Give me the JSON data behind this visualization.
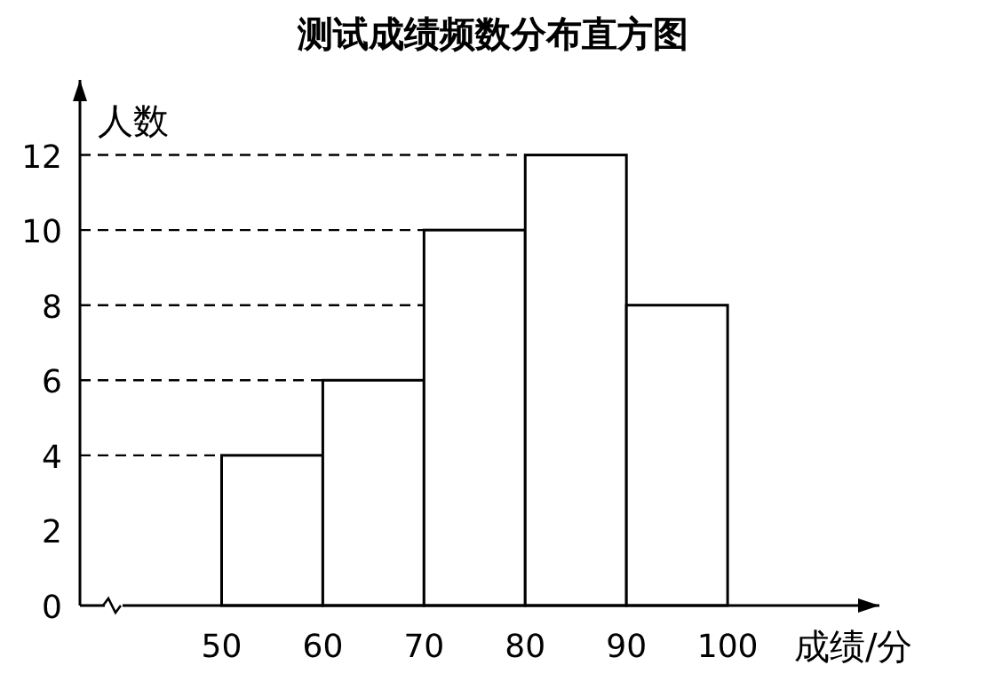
{
  "chart_data": {
    "type": "histogram",
    "title": "测试成绩频数分布直方图",
    "xlabel": "成绩/分",
    "ylabel": "人数",
    "bins": [
      50,
      60,
      70,
      80,
      90,
      100
    ],
    "values": [
      4,
      6,
      10,
      12,
      8
    ],
    "color": "#ffffff",
    "xlim": [
      36,
      115
    ],
    "xticks": [
      50,
      60,
      70,
      80,
      90,
      100
    ],
    "ylim": [
      0,
      14
    ],
    "yticks": [
      0,
      2,
      4,
      6,
      8,
      10,
      12
    ],
    "ref_lines": [
      {
        "axis": "y",
        "value": 4,
        "line_style": "dashed"
      },
      {
        "axis": "y",
        "value": 6,
        "line_style": "dashed"
      },
      {
        "axis": "y",
        "value": 8,
        "line_style": "dashed"
      },
      {
        "axis": "y",
        "value": 10,
        "line_style": "dashed"
      },
      {
        "axis": "y",
        "value": 12,
        "line_style": "dashed"
      }
    ],
    "grid": false
  }
}
